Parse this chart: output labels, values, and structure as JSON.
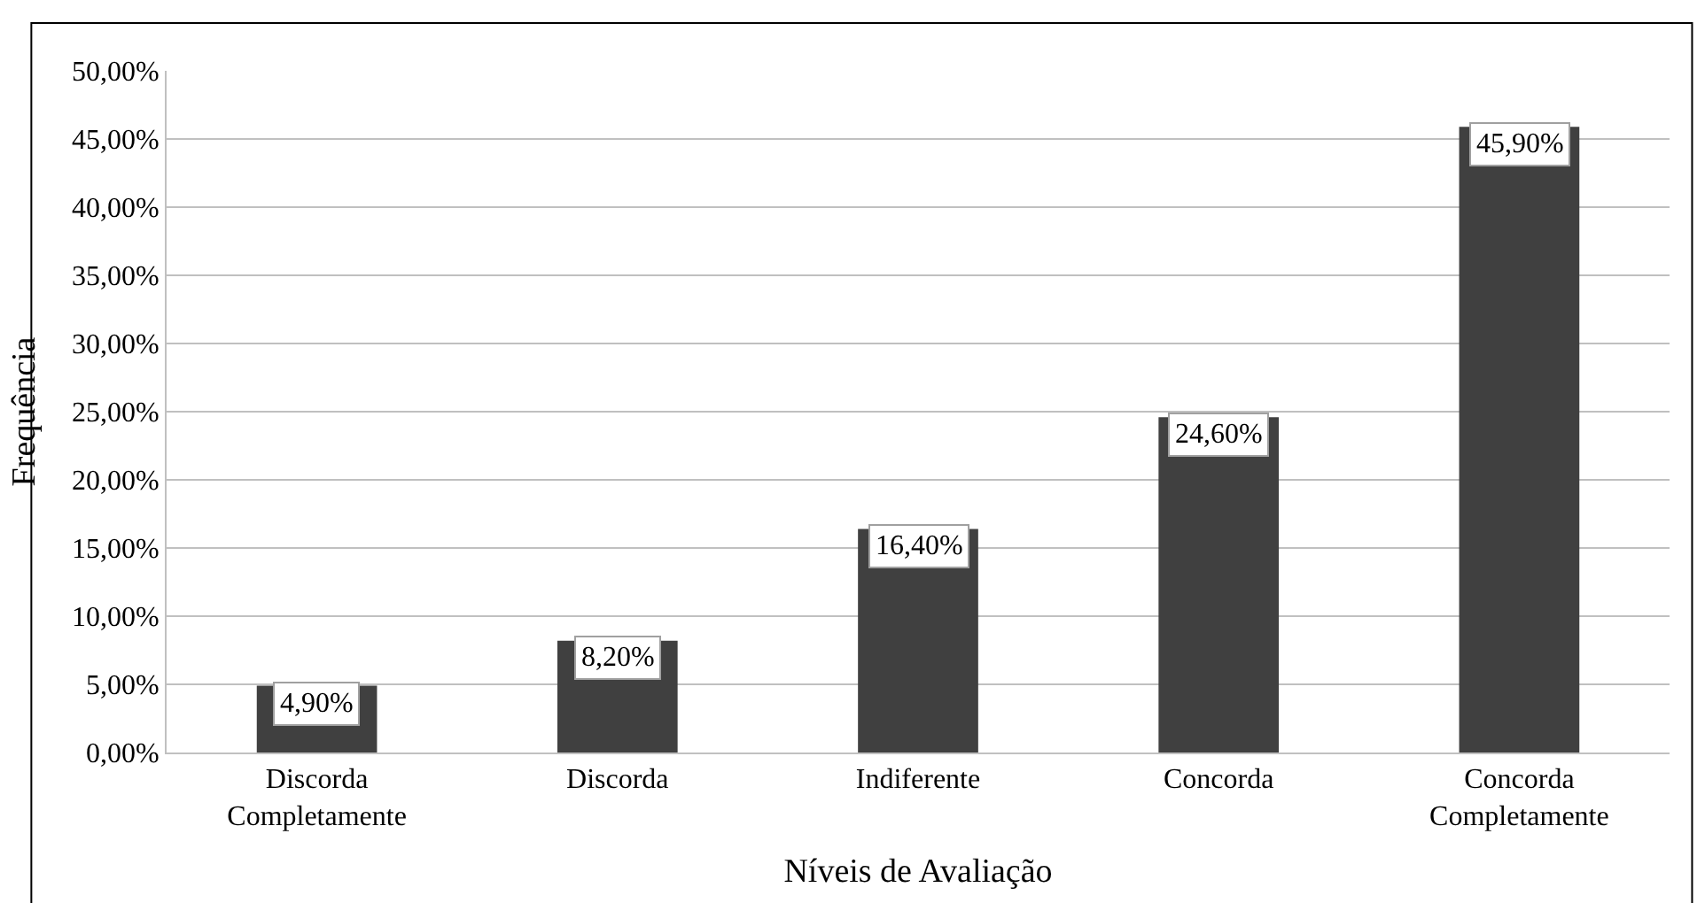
{
  "chart_data": {
    "type": "bar",
    "xlabel": "Níveis de Avaliação",
    "ylabel": "Frequência",
    "categories": [
      "Discorda\nCompletamente",
      "Discorda",
      "Indiferente",
      "Concorda",
      "Concorda\nCompletamente"
    ],
    "values": [
      4.9,
      8.2,
      16.4,
      24.6,
      45.9
    ],
    "value_labels": [
      "4,90%",
      "8,20%",
      "16,40%",
      "24,60%",
      "45,90%"
    ],
    "color": "#404040",
    "ylim": [
      0,
      50
    ],
    "yticks": [
      {
        "value": 0,
        "label": "0,00%"
      },
      {
        "value": 5,
        "label": "5,00%"
      },
      {
        "value": 10,
        "label": "10,00%"
      },
      {
        "value": 15,
        "label": "15,00%"
      },
      {
        "value": 20,
        "label": "20,00%"
      },
      {
        "value": 25,
        "label": "25,00%"
      },
      {
        "value": 30,
        "label": "30,00%"
      },
      {
        "value": 35,
        "label": "35,00%"
      },
      {
        "value": 40,
        "label": "40,00%"
      },
      {
        "value": 45,
        "label": "45,00%"
      },
      {
        "value": 50,
        "label": "50,00%"
      }
    ],
    "grid": "y"
  }
}
